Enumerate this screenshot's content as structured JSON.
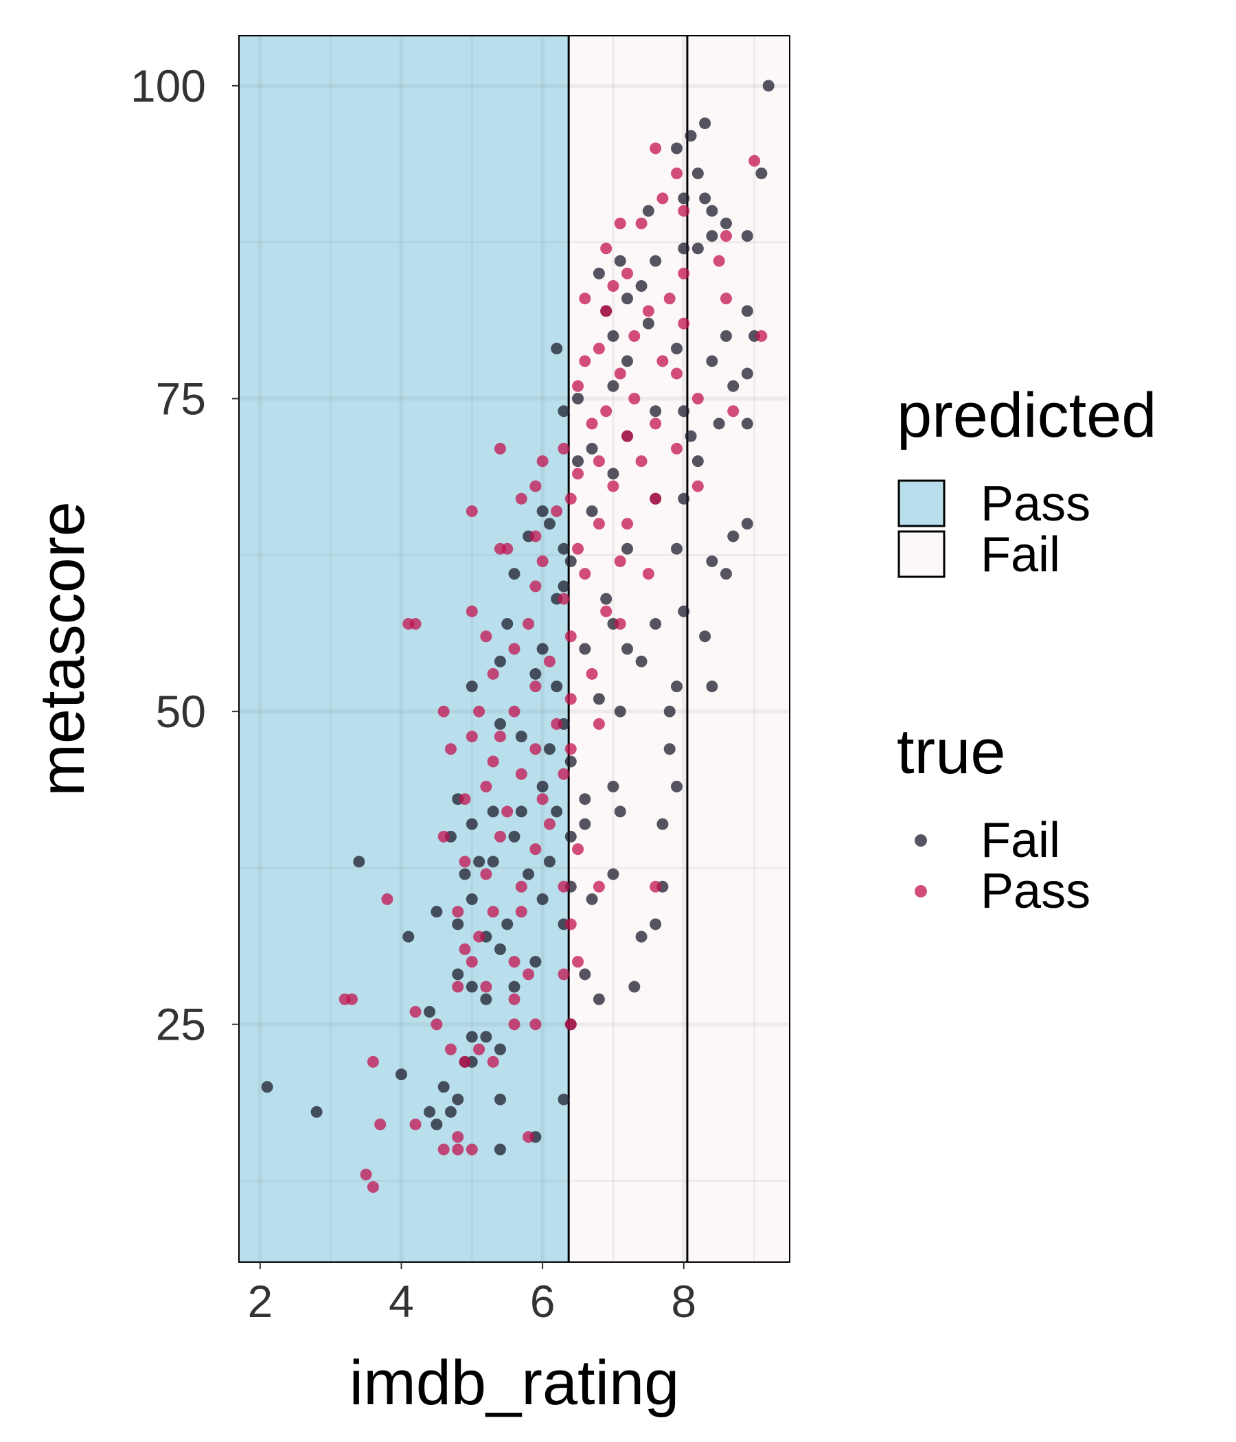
{
  "chart_data": {
    "type": "scatter",
    "xlabel": "imdb_rating",
    "ylabel": "metascore",
    "xlim": [
      1.7,
      9.5
    ],
    "ylim": [
      6,
      104
    ],
    "x_ticks": [
      2,
      4,
      6,
      8
    ],
    "y_ticks": [
      25,
      50,
      75,
      100
    ],
    "x_tick_labels": [
      "2",
      "4",
      "6",
      "8"
    ],
    "y_tick_labels": [
      "25",
      "50",
      "75",
      "100"
    ],
    "grid": true,
    "legend_placement": "right",
    "regions": {
      "legend_title": "predicted",
      "items": [
        {
          "label": "Pass",
          "fill": "#b8dfeb",
          "x_range": [
            1.7,
            6.37
          ]
        },
        {
          "label": "Fail",
          "fill": "#fdf8f8",
          "x_range": [
            6.37,
            9.5
          ]
        }
      ],
      "boundaries": [
        6.37,
        8.05
      ]
    },
    "points_legend": {
      "legend_title": "true",
      "items": [
        {
          "label": "Fail",
          "color": "#1c1c2c"
        },
        {
          "label": "Pass",
          "color": "#c1134f"
        }
      ]
    },
    "series": [
      {
        "name": "Fail",
        "color": "#1c1c2c",
        "points": [
          [
            9.2,
            100
          ],
          [
            8.3,
            97
          ],
          [
            8.1,
            96
          ],
          [
            7.9,
            95
          ],
          [
            8.2,
            93
          ],
          [
            9.1,
            93
          ],
          [
            8.0,
            91
          ],
          [
            8.3,
            91
          ],
          [
            8.4,
            90
          ],
          [
            7.5,
            90
          ],
          [
            8.6,
            89
          ],
          [
            8.4,
            88
          ],
          [
            8.9,
            88
          ],
          [
            8.0,
            87
          ],
          [
            7.1,
            86
          ],
          [
            8.2,
            87
          ],
          [
            7.6,
            86
          ],
          [
            6.8,
            85
          ],
          [
            7.4,
            84
          ],
          [
            7.2,
            83
          ],
          [
            8.9,
            82
          ],
          [
            8.6,
            80
          ],
          [
            9.0,
            80
          ],
          [
            7.5,
            81
          ],
          [
            6.9,
            82
          ],
          [
            7.0,
            80
          ],
          [
            6.2,
            79
          ],
          [
            7.9,
            79
          ],
          [
            8.4,
            78
          ],
          [
            7.2,
            78
          ],
          [
            8.9,
            77
          ],
          [
            8.7,
            76
          ],
          [
            7.0,
            76
          ],
          [
            6.5,
            75
          ],
          [
            6.3,
            74
          ],
          [
            8.0,
            74
          ],
          [
            7.6,
            74
          ],
          [
            8.1,
            72
          ],
          [
            8.5,
            73
          ],
          [
            8.9,
            73
          ],
          [
            7.2,
            72
          ],
          [
            6.7,
            71
          ],
          [
            6.5,
            70
          ],
          [
            8.2,
            70
          ],
          [
            7.0,
            69
          ],
          [
            8.0,
            67
          ],
          [
            7.6,
            67
          ],
          [
            6.7,
            66
          ],
          [
            6.0,
            66
          ],
          [
            8.9,
            65
          ],
          [
            8.7,
            64
          ],
          [
            7.9,
            63
          ],
          [
            8.4,
            62
          ],
          [
            8.6,
            61
          ],
          [
            6.1,
            65
          ],
          [
            6.3,
            63
          ],
          [
            7.2,
            63
          ],
          [
            5.8,
            64
          ],
          [
            6.4,
            62
          ],
          [
            5.6,
            61
          ],
          [
            6.3,
            60
          ],
          [
            6.9,
            59
          ],
          [
            6.2,
            59
          ],
          [
            7.0,
            57
          ],
          [
            8.0,
            58
          ],
          [
            7.6,
            57
          ],
          [
            8.3,
            56
          ],
          [
            7.2,
            55
          ],
          [
            6.6,
            55
          ],
          [
            5.5,
            57
          ],
          [
            6.0,
            55
          ],
          [
            7.4,
            54
          ],
          [
            7.9,
            52
          ],
          [
            8.4,
            52
          ],
          [
            5.0,
            52
          ],
          [
            5.4,
            54
          ],
          [
            5.9,
            53
          ],
          [
            6.2,
            52
          ],
          [
            6.8,
            51
          ],
          [
            7.8,
            50
          ],
          [
            7.1,
            50
          ],
          [
            6.3,
            49
          ],
          [
            5.4,
            49
          ],
          [
            5.7,
            48
          ],
          [
            6.1,
            47
          ],
          [
            7.8,
            47
          ],
          [
            6.4,
            46
          ],
          [
            6.0,
            44
          ],
          [
            7.0,
            44
          ],
          [
            7.9,
            44
          ],
          [
            6.6,
            43
          ],
          [
            6.2,
            42
          ],
          [
            4.8,
            43
          ],
          [
            5.3,
            42
          ],
          [
            5.7,
            42
          ],
          [
            6.6,
            41
          ],
          [
            7.7,
            41
          ],
          [
            7.1,
            42
          ],
          [
            5.0,
            41
          ],
          [
            5.6,
            40
          ],
          [
            4.7,
            40
          ],
          [
            6.4,
            40
          ],
          [
            6.1,
            38
          ],
          [
            7.0,
            37
          ],
          [
            3.4,
            38
          ],
          [
            5.1,
            38
          ],
          [
            4.9,
            37
          ],
          [
            5.3,
            38
          ],
          [
            5.8,
            37
          ],
          [
            6.4,
            36
          ],
          [
            6.7,
            35
          ],
          [
            7.7,
            36
          ],
          [
            6.0,
            35
          ],
          [
            5.0,
            35
          ],
          [
            4.5,
            34
          ],
          [
            4.8,
            33
          ],
          [
            5.5,
            33
          ],
          [
            6.3,
            33
          ],
          [
            7.6,
            33
          ],
          [
            7.4,
            32
          ],
          [
            5.2,
            32
          ],
          [
            4.1,
            32
          ],
          [
            5.4,
            31
          ],
          [
            5.9,
            30
          ],
          [
            6.6,
            29
          ],
          [
            5.6,
            28
          ],
          [
            4.8,
            29
          ],
          [
            5.0,
            28
          ],
          [
            5.2,
            27
          ],
          [
            7.3,
            28
          ],
          [
            6.8,
            27
          ],
          [
            4.4,
            26
          ],
          [
            5.0,
            24
          ],
          [
            5.2,
            24
          ],
          [
            5.4,
            23
          ],
          [
            6.4,
            25
          ],
          [
            5.0,
            22
          ],
          [
            4.9,
            22
          ],
          [
            2.1,
            20
          ],
          [
            4.0,
            21
          ],
          [
            4.6,
            20
          ],
          [
            4.8,
            19
          ],
          [
            2.8,
            18
          ],
          [
            4.4,
            18
          ],
          [
            5.4,
            19
          ],
          [
            4.5,
            17
          ],
          [
            6.3,
            19
          ],
          [
            5.9,
            16
          ],
          [
            5.4,
            15
          ],
          [
            4.7,
            18
          ]
        ]
      },
      {
        "name": "Pass",
        "color": "#c1134f",
        "points": [
          [
            7.6,
            95
          ],
          [
            9.0,
            94
          ],
          [
            7.9,
            93
          ],
          [
            7.7,
            91
          ],
          [
            8.0,
            90
          ],
          [
            7.1,
            89
          ],
          [
            7.4,
            89
          ],
          [
            8.6,
            88
          ],
          [
            6.9,
            87
          ],
          [
            7.2,
            85
          ],
          [
            8.0,
            85
          ],
          [
            8.5,
            86
          ],
          [
            7.0,
            84
          ],
          [
            7.8,
            83
          ],
          [
            8.6,
            83
          ],
          [
            6.6,
            83
          ],
          [
            7.5,
            82
          ],
          [
            6.9,
            82
          ],
          [
            8.0,
            81
          ],
          [
            7.3,
            80
          ],
          [
            9.1,
            80
          ],
          [
            6.8,
            79
          ],
          [
            7.7,
            78
          ],
          [
            6.6,
            78
          ],
          [
            7.1,
            77
          ],
          [
            7.9,
            77
          ],
          [
            6.5,
            76
          ],
          [
            7.3,
            75
          ],
          [
            8.2,
            75
          ],
          [
            6.9,
            74
          ],
          [
            8.7,
            74
          ],
          [
            6.7,
            73
          ],
          [
            7.6,
            73
          ],
          [
            7.2,
            72
          ],
          [
            7.9,
            71
          ],
          [
            6.3,
            71
          ],
          [
            6.8,
            70
          ],
          [
            5.4,
            71
          ],
          [
            6.0,
            70
          ],
          [
            7.4,
            70
          ],
          [
            8.2,
            68
          ],
          [
            6.5,
            69
          ],
          [
            7.0,
            68
          ],
          [
            5.9,
            68
          ],
          [
            6.4,
            67
          ],
          [
            7.6,
            67
          ],
          [
            5.0,
            66
          ],
          [
            5.7,
            67
          ],
          [
            6.2,
            66
          ],
          [
            6.8,
            65
          ],
          [
            7.2,
            65
          ],
          [
            5.9,
            64
          ],
          [
            6.5,
            63
          ],
          [
            7.1,
            62
          ],
          [
            7.5,
            61
          ],
          [
            5.4,
            63
          ],
          [
            5.5,
            63
          ],
          [
            6.0,
            62
          ],
          [
            6.6,
            61
          ],
          [
            5.9,
            60
          ],
          [
            6.3,
            59
          ],
          [
            6.9,
            58
          ],
          [
            7.1,
            57
          ],
          [
            4.1,
            57
          ],
          [
            4.2,
            57
          ],
          [
            5.0,
            58
          ],
          [
            5.8,
            57
          ],
          [
            6.4,
            56
          ],
          [
            5.2,
            56
          ],
          [
            5.6,
            55
          ],
          [
            6.1,
            54
          ],
          [
            6.7,
            53
          ],
          [
            5.3,
            53
          ],
          [
            5.9,
            52
          ],
          [
            6.4,
            51
          ],
          [
            5.1,
            50
          ],
          [
            5.6,
            50
          ],
          [
            6.2,
            49
          ],
          [
            6.8,
            49
          ],
          [
            4.6,
            50
          ],
          [
            5.4,
            48
          ],
          [
            5.9,
            47
          ],
          [
            6.4,
            47
          ],
          [
            5.0,
            48
          ],
          [
            4.7,
            47
          ],
          [
            5.3,
            46
          ],
          [
            5.7,
            45
          ],
          [
            6.3,
            45
          ],
          [
            5.2,
            44
          ],
          [
            6.0,
            43
          ],
          [
            4.9,
            43
          ],
          [
            5.5,
            42
          ],
          [
            6.1,
            41
          ],
          [
            4.6,
            40
          ],
          [
            5.4,
            40
          ],
          [
            5.9,
            39
          ],
          [
            6.5,
            39
          ],
          [
            4.9,
            38
          ],
          [
            5.2,
            37
          ],
          [
            5.7,
            36
          ],
          [
            6.3,
            36
          ],
          [
            6.8,
            36
          ],
          [
            7.6,
            36
          ],
          [
            3.8,
            35
          ],
          [
            5.3,
            34
          ],
          [
            5.7,
            34
          ],
          [
            6.4,
            33
          ],
          [
            4.8,
            34
          ],
          [
            5.1,
            32
          ],
          [
            4.9,
            31
          ],
          [
            5.6,
            30
          ],
          [
            6.3,
            29
          ],
          [
            5.0,
            30
          ],
          [
            5.8,
            29
          ],
          [
            6.5,
            30
          ],
          [
            5.2,
            28
          ],
          [
            5.6,
            27
          ],
          [
            4.8,
            28
          ],
          [
            3.2,
            27
          ],
          [
            3.3,
            27
          ],
          [
            4.2,
            26
          ],
          [
            4.5,
            25
          ],
          [
            5.9,
            25
          ],
          [
            5.6,
            25
          ],
          [
            6.4,
            25
          ],
          [
            4.7,
            23
          ],
          [
            5.1,
            23
          ],
          [
            4.9,
            22
          ],
          [
            5.3,
            22
          ],
          [
            3.6,
            22
          ],
          [
            4.2,
            17
          ],
          [
            3.7,
            17
          ],
          [
            4.8,
            16
          ],
          [
            4.8,
            15
          ],
          [
            5.0,
            15
          ],
          [
            4.6,
            15
          ],
          [
            5.8,
            16
          ],
          [
            3.5,
            13
          ],
          [
            3.6,
            12
          ]
        ]
      }
    ]
  }
}
